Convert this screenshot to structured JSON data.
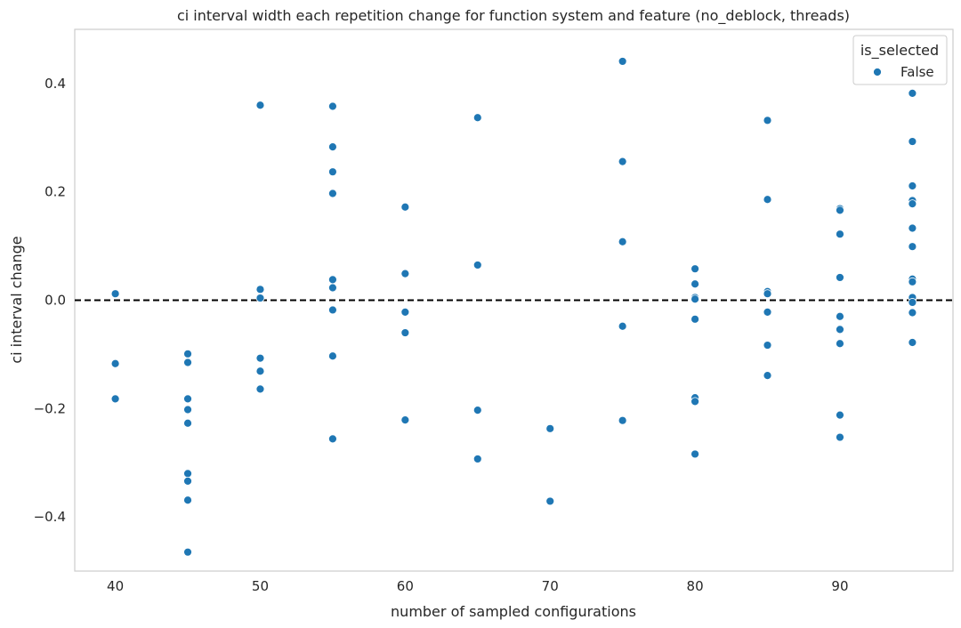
{
  "chart_data": {
    "type": "scatter",
    "title": "ci interval width each repetition change for function system and feature (no_deblock, threads)",
    "xlabel": "number of sampled configurations",
    "ylabel": "ci interval change",
    "xlim": [
      37.2,
      97.8
    ],
    "ylim": [
      -0.5,
      0.5
    ],
    "xticks": [
      40,
      50,
      60,
      70,
      80,
      90
    ],
    "yticks": [
      -0.4,
      -0.2,
      0.0,
      0.2,
      0.4
    ],
    "ytick_labels": [
      "−0.4",
      "−0.2",
      "0.0",
      "0.2",
      "0.4"
    ],
    "grid": false,
    "reference_line": {
      "y": 0.0,
      "style": "dashed",
      "color": "#000000"
    },
    "legend": {
      "title": "is_selected",
      "position": "top-right",
      "entries": [
        "False"
      ]
    },
    "series": [
      {
        "name": "False",
        "color": "#1f77b4",
        "points": [
          [
            40,
            0.012
          ],
          [
            40,
            -0.117
          ],
          [
            40,
            -0.182
          ],
          [
            45,
            -0.099
          ],
          [
            45,
            -0.115
          ],
          [
            45,
            -0.182
          ],
          [
            45,
            -0.202
          ],
          [
            45,
            -0.227
          ],
          [
            45,
            -0.32
          ],
          [
            45,
            -0.334
          ],
          [
            45,
            -0.369
          ],
          [
            45,
            -0.465
          ],
          [
            50,
            0.36
          ],
          [
            50,
            0.02
          ],
          [
            50,
            0.004
          ],
          [
            50,
            -0.107
          ],
          [
            50,
            -0.131
          ],
          [
            50,
            -0.164
          ],
          [
            55,
            0.358
          ],
          [
            55,
            0.283
          ],
          [
            55,
            0.237
          ],
          [
            55,
            0.197
          ],
          [
            55,
            0.038
          ],
          [
            55,
            0.023
          ],
          [
            55,
            -0.018
          ],
          [
            55,
            -0.103
          ],
          [
            55,
            -0.256
          ],
          [
            60,
            0.172
          ],
          [
            60,
            0.049
          ],
          [
            60,
            -0.022
          ],
          [
            60,
            -0.06
          ],
          [
            60,
            -0.221
          ],
          [
            65,
            0.337
          ],
          [
            65,
            0.065
          ],
          [
            65,
            -0.203
          ],
          [
            65,
            -0.293
          ],
          [
            70,
            -0.237
          ],
          [
            70,
            -0.371
          ],
          [
            75,
            0.441
          ],
          [
            75,
            0.256
          ],
          [
            75,
            0.108
          ],
          [
            75,
            -0.048
          ],
          [
            75,
            -0.222
          ],
          [
            80,
            0.058
          ],
          [
            80,
            0.03
          ],
          [
            80,
            0.005
          ],
          [
            80,
            0.002
          ],
          [
            80,
            -0.035
          ],
          [
            80,
            -0.18
          ],
          [
            80,
            -0.187
          ],
          [
            80,
            -0.284
          ],
          [
            85,
            0.332
          ],
          [
            85,
            0.186
          ],
          [
            85,
            0.016
          ],
          [
            85,
            0.012
          ],
          [
            85,
            -0.022
          ],
          [
            85,
            -0.083
          ],
          [
            85,
            -0.139
          ],
          [
            90,
            0.169
          ],
          [
            90,
            0.166
          ],
          [
            90,
            0.122
          ],
          [
            90,
            0.042
          ],
          [
            90,
            -0.03
          ],
          [
            90,
            -0.054
          ],
          [
            90,
            -0.08
          ],
          [
            90,
            -0.212
          ],
          [
            90,
            -0.253
          ],
          [
            95,
            0.382
          ],
          [
            95,
            0.293
          ],
          [
            95,
            0.211
          ],
          [
            95,
            0.184
          ],
          [
            95,
            0.178
          ],
          [
            95,
            0.133
          ],
          [
            95,
            0.099
          ],
          [
            95,
            0.039
          ],
          [
            95,
            0.034
          ],
          [
            95,
            0.005
          ],
          [
            95,
            -0.004
          ],
          [
            95,
            -0.023
          ],
          [
            95,
            -0.078
          ]
        ]
      }
    ]
  }
}
